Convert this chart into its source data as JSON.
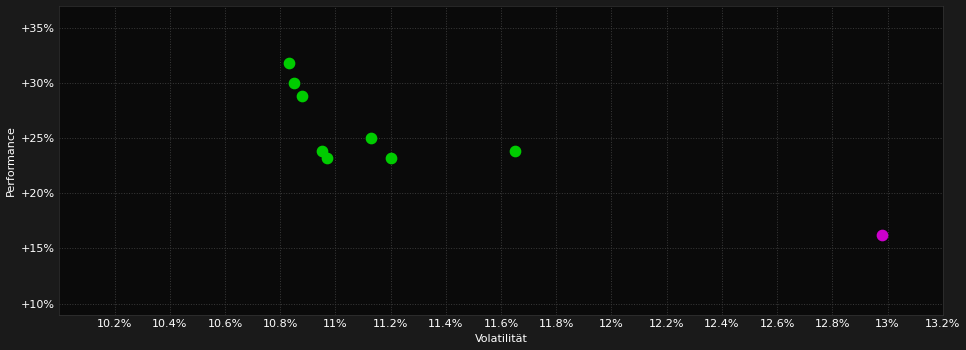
{
  "background_color": "#1a1a1a",
  "plot_bg_color": "#0a0a0a",
  "grid_color": "#3a3a3a",
  "text_color": "#ffffff",
  "xlabel": "Volatilität",
  "ylabel": "Performance",
  "xlim": [
    0.1,
    0.132
  ],
  "ylim": [
    0.09,
    0.37
  ],
  "xticks": [
    0.102,
    0.104,
    0.106,
    0.108,
    0.11,
    0.112,
    0.114,
    0.116,
    0.118,
    0.12,
    0.122,
    0.124,
    0.126,
    0.128,
    0.13,
    0.132
  ],
  "yticks": [
    0.1,
    0.15,
    0.2,
    0.25,
    0.3,
    0.35
  ],
  "green_points": [
    [
      0.1083,
      0.318
    ],
    [
      0.1085,
      0.3
    ],
    [
      0.1088,
      0.288
    ],
    [
      0.1095,
      0.238
    ],
    [
      0.1097,
      0.232
    ],
    [
      0.1113,
      0.25
    ],
    [
      0.112,
      0.232
    ],
    [
      0.1165,
      0.238
    ]
  ],
  "magenta_points": [
    [
      0.1298,
      0.162
    ]
  ],
  "green_color": "#00cc00",
  "magenta_color": "#cc00cc",
  "marker_size": 55
}
